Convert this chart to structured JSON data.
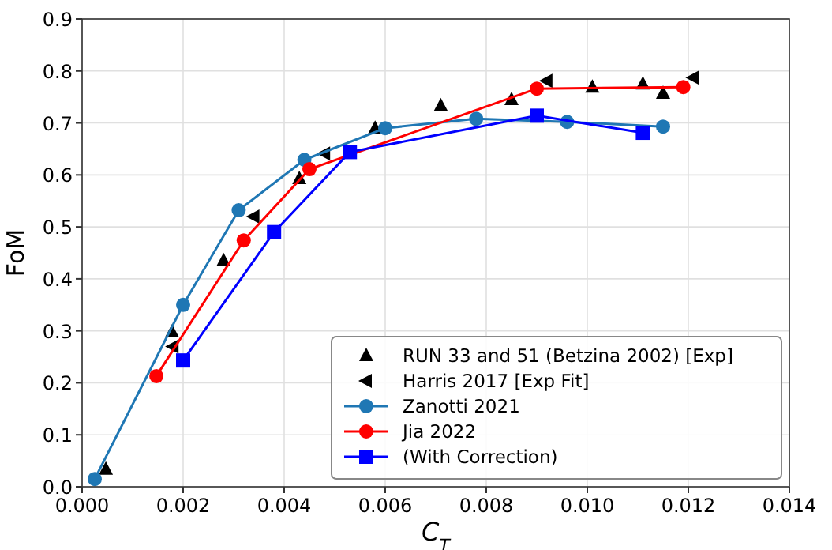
{
  "chart_data": {
    "type": "line",
    "xlabel": "C$_{T}$",
    "ylabel": "FoM",
    "xlim": [
      0,
      0.014
    ],
    "ylim": [
      0,
      0.9
    ],
    "xticks": [
      {
        "value": 0,
        "label": "0.000"
      },
      {
        "value": 0.002,
        "label": "0.002"
      },
      {
        "value": 0.004,
        "label": "0.004"
      },
      {
        "value": 0.006,
        "label": "0.006"
      },
      {
        "value": 0.008,
        "label": "0.008"
      },
      {
        "value": 0.01,
        "label": "0.010"
      },
      {
        "value": 0.012,
        "label": "0.012"
      },
      {
        "value": 0.014,
        "label": "0.014"
      }
    ],
    "yticks": [
      {
        "value": 0,
        "label": "0.0"
      },
      {
        "value": 0.1,
        "label": "0.1"
      },
      {
        "value": 0.2,
        "label": "0.2"
      },
      {
        "value": 0.3,
        "label": "0.3"
      },
      {
        "value": 0.4,
        "label": "0.4"
      },
      {
        "value": 0.5,
        "label": "0.5"
      },
      {
        "value": 0.6,
        "label": "0.6"
      },
      {
        "value": 0.7,
        "label": "0.7"
      },
      {
        "value": 0.8,
        "label": "0.8"
      },
      {
        "value": 0.9,
        "label": "0.9"
      }
    ],
    "grid": true,
    "legend": "bottom right",
    "series": [
      {
        "name": "RUN 33 and 51 (Betzina 2002) [Exp]",
        "type": "scatter",
        "marker": "triangle",
        "color": "#000000",
        "x": [
          0.00047,
          0.00178,
          0.0028,
          0.0043,
          0.0058,
          0.0071,
          0.0085,
          0.0101,
          0.0111,
          0.0115
        ],
        "values": [
          0.034,
          0.298,
          0.435,
          0.593,
          0.69,
          0.733,
          0.745,
          0.769,
          0.775,
          0.757
        ]
      },
      {
        "name": "Harris 2017 [Exp Fit]",
        "type": "scatter",
        "marker": "triangle-left",
        "color": "#000000",
        "x": [
          0.0018,
          0.0034,
          0.0048,
          0.0092,
          0.0121
        ],
        "values": [
          0.27,
          0.52,
          0.641,
          0.781,
          0.787
        ]
      },
      {
        "name": "Zanotti 2021",
        "marker": "circle",
        "color": "#1f77b4",
        "x": [
          0.00025,
          0.002,
          0.0031,
          0.0044,
          0.006,
          0.0078,
          0.0096,
          0.0115
        ],
        "values": [
          0.015,
          0.35,
          0.532,
          0.629,
          0.69,
          0.708,
          0.702,
          0.693
        ]
      },
      {
        "name": "Jia 2022",
        "marker": "circle",
        "color": "#ff0000",
        "x": [
          0.00147,
          0.0032,
          0.0045,
          0.009,
          0.0119
        ],
        "values": [
          0.213,
          0.474,
          0.611,
          0.766,
          0.769
        ]
      },
      {
        "name": "(With Correction)",
        "marker": "square",
        "color": "#0000ff",
        "x": [
          0.002,
          0.0038,
          0.0053,
          0.009,
          0.0111
        ],
        "values": [
          0.243,
          0.49,
          0.644,
          0.714,
          0.681
        ]
      }
    ]
  }
}
